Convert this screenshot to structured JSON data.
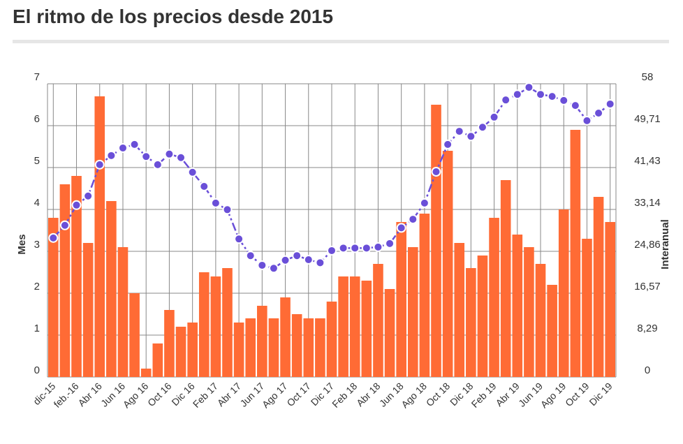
{
  "chart_data": {
    "type": "bar+line",
    "title": "El ritmo de los precios desde 2015",
    "ylabel_left": "Mes",
    "ylabel_right": "Interanual",
    "ylim_left": [
      0,
      7
    ],
    "ylim_right": [
      0,
      58
    ],
    "yticks_left": [
      "0",
      "1",
      "2",
      "3",
      "4",
      "5",
      "6",
      "7"
    ],
    "yticks_right": [
      "0",
      "8,29",
      "16,57",
      "24,86",
      "33,14",
      "41,43",
      "49,71",
      "58"
    ],
    "xtick_labels": [
      "dic-15",
      "feb.-16",
      "Abr 16",
      "Jun 16",
      "Ago 16",
      "Oct 16",
      "Dic 16",
      "Feb 17",
      "Abr 17",
      "Jun 17",
      "Ago 17",
      "Oct 17",
      "Dic 17",
      "Feb 18",
      "Abr 18",
      "Jun 18",
      "Ago 18",
      "Oct 18",
      "Dic 18",
      "Feb 19",
      "Abr 19",
      "Jun 19",
      "Ago 19",
      "Oct 19",
      "Dic 19"
    ],
    "grid": true,
    "colors": {
      "bar": "#ff6b35",
      "line": "#6a4fd8",
      "grid": "#888888"
    },
    "series": [
      {
        "name": "Mes",
        "axis": "left",
        "type": "bar",
        "values": [
          3.8,
          4.6,
          4.8,
          3.2,
          6.7,
          4.2,
          3.1,
          2.0,
          0.2,
          0.8,
          1.6,
          1.2,
          1.3,
          2.5,
          2.4,
          2.6,
          1.3,
          1.4,
          1.7,
          1.4,
          1.9,
          1.5,
          1.4,
          1.4,
          1.8,
          2.4,
          2.4,
          2.3,
          2.7,
          2.1,
          3.7,
          3.1,
          3.9,
          6.5,
          5.4,
          3.2,
          2.6,
          2.9,
          3.8,
          4.7,
          3.4,
          3.1,
          2.7,
          2.2,
          4.0,
          5.9,
          3.3,
          4.3,
          3.7
        ]
      },
      {
        "name": "Interanual",
        "axis": "right",
        "type": "line",
        "values": [
          27.5,
          30.0,
          34.0,
          35.8,
          42.0,
          43.8,
          45.3,
          46.0,
          43.6,
          42.0,
          44.1,
          43.4,
          40.5,
          37.7,
          34.4,
          33.1,
          27.3,
          24.0,
          22.1,
          21.5,
          23.1,
          24.0,
          23.2,
          22.6,
          25.0,
          25.5,
          25.5,
          25.5,
          25.7,
          26.4,
          29.5,
          31.2,
          34.4,
          40.6,
          46.0,
          48.6,
          47.6,
          49.4,
          51.4,
          54.8,
          55.9,
          57.3,
          55.9,
          55.5,
          54.7,
          53.7,
          50.7,
          52.2,
          54.0
        ]
      }
    ]
  }
}
